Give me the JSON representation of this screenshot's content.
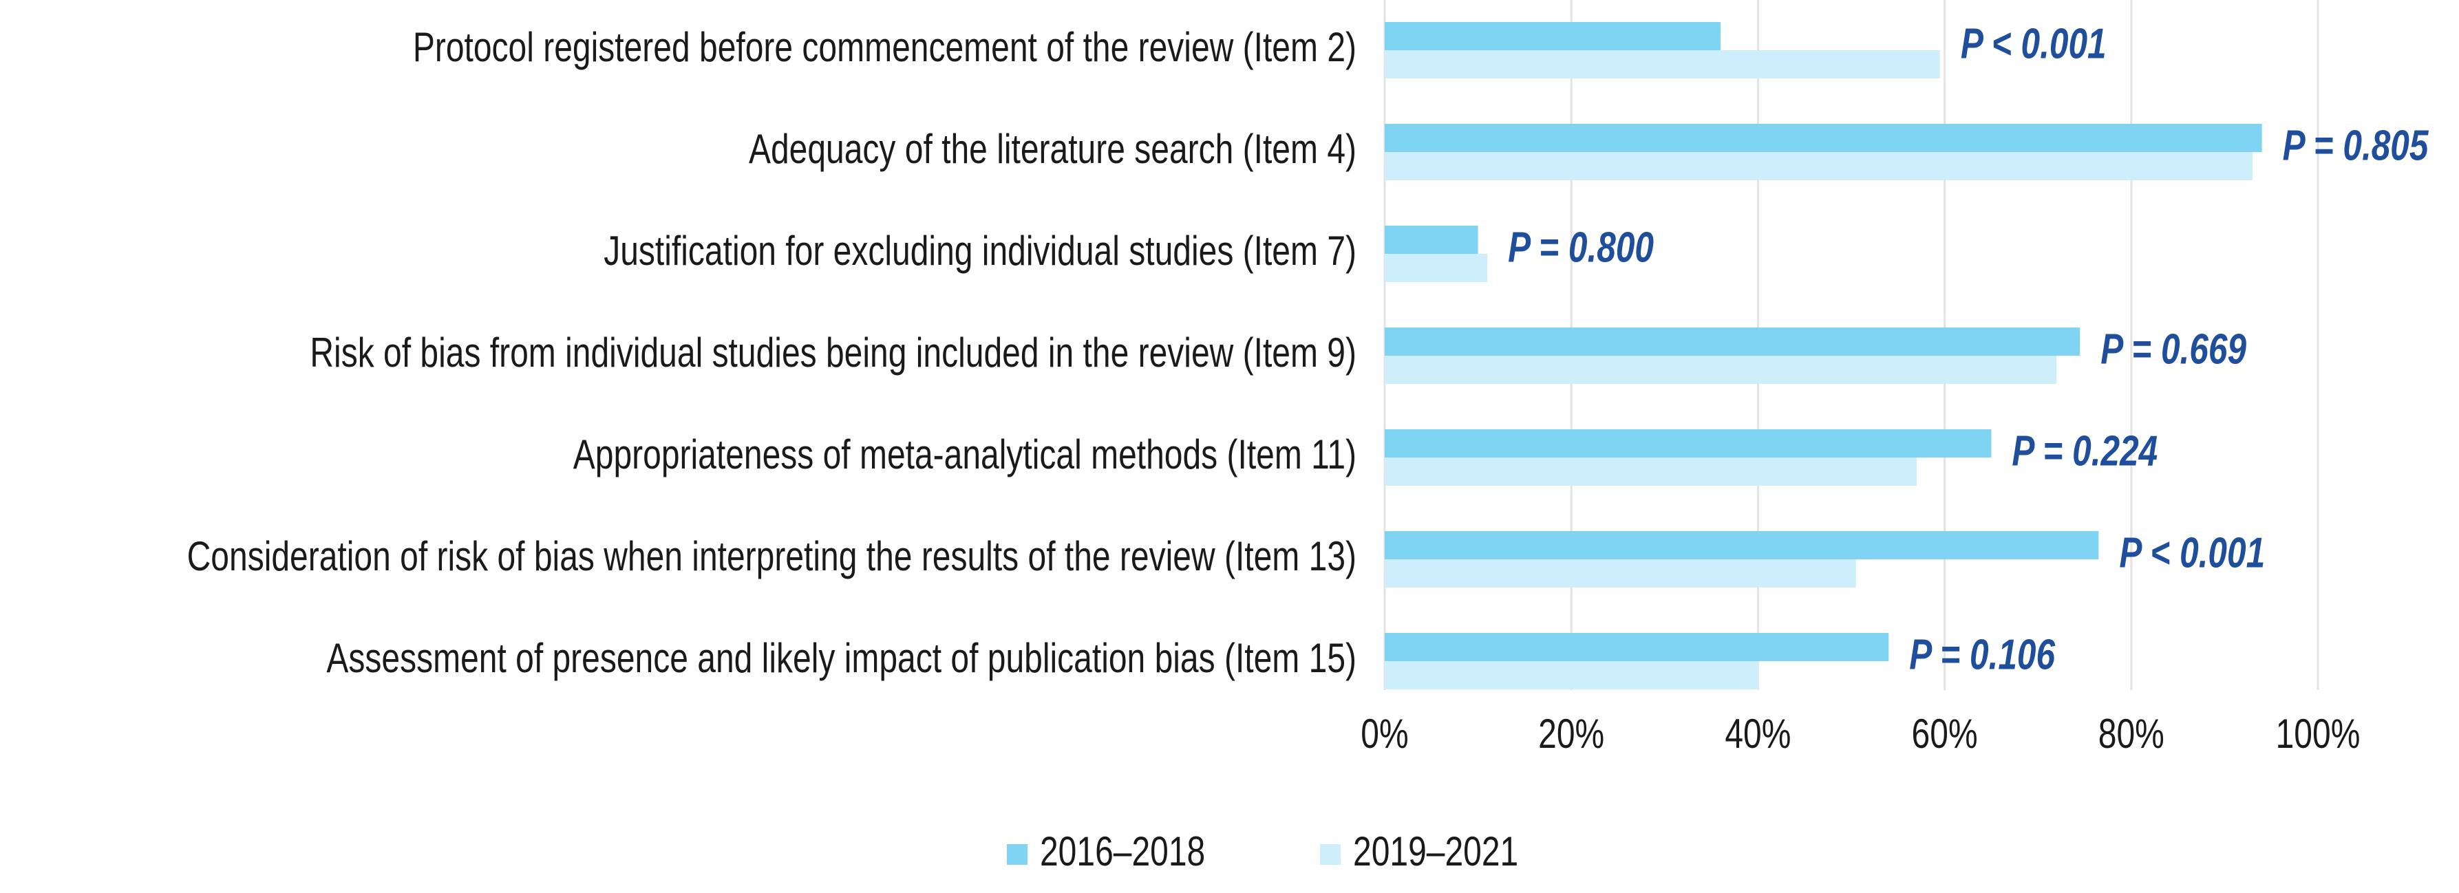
{
  "chart_data": {
    "type": "bar",
    "orientation": "horizontal",
    "categories": [
      "Protocol registered before commencement of the review (Item 2)",
      "Adequacy of the literature search (Item 4)",
      "Justification for excluding individual studies (Item 7)",
      "Risk of bias from individual studies being included in the review (Item 9)",
      "Appropriateness of meta-analytical methods (Item 11)",
      "Consideration of risk of bias when interpreting the results of the review (Item 13)",
      "Assessment of presence and likely impact of publication bias (Item 15)"
    ],
    "series": [
      {
        "name": "2016–2018",
        "color": "#7fd3f3",
        "values": [
          36,
          94,
          10,
          74.5,
          65,
          76.5,
          54
        ]
      },
      {
        "name": "2019–2021",
        "color": "#cdeefa",
        "values": [
          59.5,
          93,
          11,
          72,
          57,
          50.5,
          40
        ]
      }
    ],
    "annotations": [
      "P < 0.001",
      "P = 0.805",
      "P = 0.800",
      "P = 0.669",
      "P = 0.224",
      "P < 0.001",
      "P = 0.106"
    ],
    "xlim": [
      0,
      100
    ],
    "xticks": [
      {
        "value": 0,
        "label": "0%"
      },
      {
        "value": 20,
        "label": "20%"
      },
      {
        "value": 40,
        "label": "40%"
      },
      {
        "value": 60,
        "label": "60%"
      },
      {
        "value": 80,
        "label": "80%"
      },
      {
        "value": 100,
        "label": "100%"
      }
    ],
    "grid": true,
    "legend": "bottom"
  }
}
